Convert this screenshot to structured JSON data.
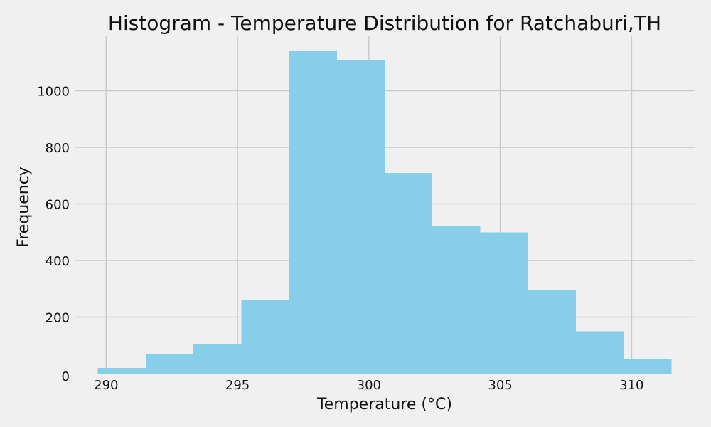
{
  "chart_data": {
    "type": "histogram",
    "title": "Histogram - Temperature Distribution for Ratchaburi,TH",
    "xlabel": "Temperature (°C)",
    "ylabel": "Frequency",
    "bin_edges": [
      289.68,
      291.5,
      293.32,
      295.14,
      296.96,
      298.78,
      300.6,
      302.42,
      304.24,
      306.06,
      307.88,
      309.7,
      311.52
    ],
    "values": [
      20,
      70,
      105,
      260,
      1140,
      1110,
      710,
      522,
      500,
      297,
      150,
      52
    ],
    "xlim": [
      288.8,
      312.4
    ],
    "ylim": [
      0,
      1195
    ],
    "x_ticks": [
      290,
      295,
      300,
      305,
      310
    ],
    "y_ticks": [
      0,
      200,
      400,
      600,
      800,
      1000
    ],
    "bar_color": "#87ceeb",
    "background_color": "#f0f0f0",
    "grid": true,
    "legend": false
  }
}
